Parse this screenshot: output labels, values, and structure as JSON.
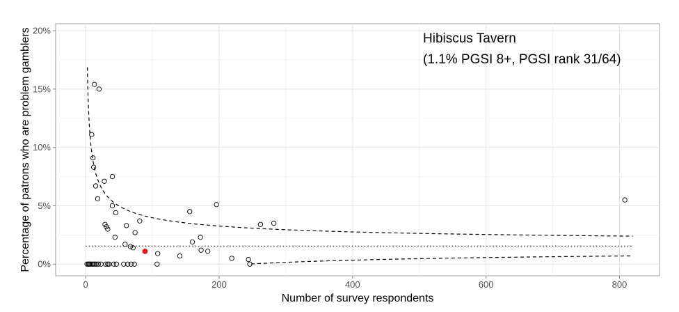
{
  "chart_data": {
    "type": "scatter",
    "title": "",
    "xlabel": "Number of survey respondents",
    "ylabel": "Percentage of patrons who are problem gamblers",
    "xlim": [
      -45,
      860
    ],
    "ylim": [
      -1.0,
      20.6
    ],
    "x_ticks": [
      0,
      200,
      400,
      600,
      800
    ],
    "x_tick_labels": [
      "0",
      "200",
      "400",
      "600",
      "800"
    ],
    "y_ticks": [
      0,
      5,
      10,
      15,
      20
    ],
    "y_tick_labels": [
      "0%",
      "5%",
      "10%",
      "15%",
      "20%"
    ],
    "grid": true,
    "legend": "none",
    "annotation_lines": [
      "Hibiscus Tavern",
      "(1.1% PGSI 8+,  PGSI rank 31/64)"
    ],
    "highlight_point": {
      "x": 89,
      "y": 1.1,
      "color": "#e31a1c"
    },
    "average_rate": 1.55,
    "points": [
      {
        "x": 2,
        "y": 0
      },
      {
        "x": 4,
        "y": 0
      },
      {
        "x": 5,
        "y": 0
      },
      {
        "x": 6,
        "y": 0
      },
      {
        "x": 8,
        "y": 0
      },
      {
        "x": 10,
        "y": 0
      },
      {
        "x": 12,
        "y": 0
      },
      {
        "x": 14,
        "y": 0
      },
      {
        "x": 16,
        "y": 0
      },
      {
        "x": 19,
        "y": 0
      },
      {
        "x": 23,
        "y": 0
      },
      {
        "x": 30,
        "y": 0
      },
      {
        "x": 33,
        "y": 0
      },
      {
        "x": 35,
        "y": 0
      },
      {
        "x": 42,
        "y": 0
      },
      {
        "x": 46,
        "y": 0
      },
      {
        "x": 57,
        "y": 0
      },
      {
        "x": 63,
        "y": 0
      },
      {
        "x": 68,
        "y": 0
      },
      {
        "x": 73,
        "y": 0
      },
      {
        "x": 107,
        "y": 0
      },
      {
        "x": 246,
        "y": 0
      },
      {
        "x": 9,
        "y": 11.1
      },
      {
        "x": 11,
        "y": 9.1
      },
      {
        "x": 12,
        "y": 8.3
      },
      {
        "x": 13,
        "y": 15.4
      },
      {
        "x": 15,
        "y": 6.7
      },
      {
        "x": 18,
        "y": 5.6
      },
      {
        "x": 20,
        "y": 15.0
      },
      {
        "x": 28,
        "y": 7.1
      },
      {
        "x": 29,
        "y": 3.4
      },
      {
        "x": 31,
        "y": 3.2
      },
      {
        "x": 33,
        "y": 3.0
      },
      {
        "x": 40,
        "y": 7.5
      },
      {
        "x": 40,
        "y": 5.0
      },
      {
        "x": 45,
        "y": 4.4
      },
      {
        "x": 44,
        "y": 2.3
      },
      {
        "x": 59,
        "y": 1.7
      },
      {
        "x": 61,
        "y": 3.3
      },
      {
        "x": 67,
        "y": 1.5
      },
      {
        "x": 71,
        "y": 1.4
      },
      {
        "x": 74,
        "y": 2.7
      },
      {
        "x": 81,
        "y": 3.7
      },
      {
        "x": 108,
        "y": 0.9
      },
      {
        "x": 141,
        "y": 0.7
      },
      {
        "x": 156,
        "y": 4.5
      },
      {
        "x": 160,
        "y": 1.9
      },
      {
        "x": 172,
        "y": 2.3
      },
      {
        "x": 173,
        "y": 1.2
      },
      {
        "x": 183,
        "y": 1.1
      },
      {
        "x": 196,
        "y": 5.1
      },
      {
        "x": 219,
        "y": 0.5
      },
      {
        "x": 244,
        "y": 0.4
      },
      {
        "x": 262,
        "y": 3.4
      },
      {
        "x": 282,
        "y": 3.5
      },
      {
        "x": 808,
        "y": 5.5
      }
    ]
  }
}
